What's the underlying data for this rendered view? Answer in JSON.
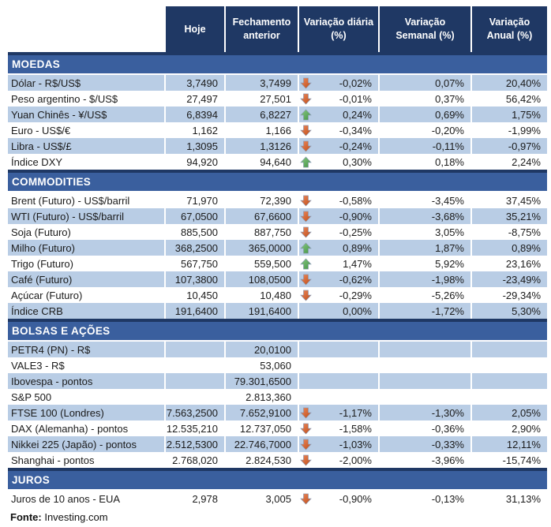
{
  "table": {
    "columns": [
      "Hoje",
      "Fechamento anterior",
      "Variação diária (%)",
      "Variação Semanal (%)",
      "Variação Anual (%)"
    ],
    "sections": [
      {
        "title": "MOEDAS",
        "zebra_start": "shaded",
        "rows": [
          {
            "label": "Dólar - R$/US$",
            "hoje": "3,7490",
            "fechamento": "3,7499",
            "arrow": "down",
            "var_diaria": "-0,02%",
            "var_semanal": "0,07%",
            "var_anual": "20,40%"
          },
          {
            "label": "Peso argentino - $/US$",
            "hoje": "27,497",
            "fechamento": "27,501",
            "arrow": "down",
            "var_diaria": "-0,01%",
            "var_semanal": "0,37%",
            "var_anual": "56,42%"
          },
          {
            "label": "Yuan Chinês - ¥/US$",
            "hoje": "6,8394",
            "fechamento": "6,8227",
            "arrow": "up",
            "var_diaria": "0,24%",
            "var_semanal": "0,69%",
            "var_anual": "1,75%"
          },
          {
            "label": "Euro - US$/€",
            "hoje": "1,162",
            "fechamento": "1,166",
            "arrow": "down",
            "var_diaria": "-0,34%",
            "var_semanal": "-0,20%",
            "var_anual": "-1,99%"
          },
          {
            "label": "Libra - US$/£",
            "hoje": "1,3095",
            "fechamento": "1,3126",
            "arrow": "down",
            "var_diaria": "-0,24%",
            "var_semanal": "-0,11%",
            "var_anual": "-0,97%"
          },
          {
            "label": "Índice DXY",
            "hoje": "94,920",
            "fechamento": "94,640",
            "arrow": "up",
            "var_diaria": "0,30%",
            "var_semanal": "0,18%",
            "var_anual": "2,24%"
          }
        ]
      },
      {
        "title": "COMMODITIES",
        "zebra_start": "white",
        "rows": [
          {
            "label": "Brent (Futuro) - US$/barril",
            "hoje": "71,970",
            "fechamento": "72,390",
            "arrow": "down",
            "var_diaria": "-0,58%",
            "var_semanal": "-3,45%",
            "var_anual": "37,45%"
          },
          {
            "label": "WTI (Futuro) - US$/barril",
            "hoje": "67,0500",
            "fechamento": "67,6600",
            "arrow": "down",
            "var_diaria": "-0,90%",
            "var_semanal": "-3,68%",
            "var_anual": "35,21%"
          },
          {
            "label": "Soja (Futuro)",
            "hoje": "885,500",
            "fechamento": "887,750",
            "arrow": "down",
            "var_diaria": "-0,25%",
            "var_semanal": "3,05%",
            "var_anual": "-8,75%"
          },
          {
            "label": "Milho (Futuro)",
            "hoje": "368,2500",
            "fechamento": "365,0000",
            "arrow": "up",
            "var_diaria": "0,89%",
            "var_semanal": "1,87%",
            "var_anual": "0,89%"
          },
          {
            "label": "Trigo (Futuro)",
            "hoje": "567,750",
            "fechamento": "559,500",
            "arrow": "up",
            "var_diaria": "1,47%",
            "var_semanal": "5,92%",
            "var_anual": "23,16%"
          },
          {
            "label": "Café (Futuro)",
            "hoje": "107,3800",
            "fechamento": "108,0500",
            "arrow": "down",
            "var_diaria": "-0,62%",
            "var_semanal": "-1,98%",
            "var_anual": "-23,49%"
          },
          {
            "label": "Açúcar (Futuro)",
            "hoje": "10,450",
            "fechamento": "10,480",
            "arrow": "down",
            "var_diaria": "-0,29%",
            "var_semanal": "-5,26%",
            "var_anual": "-29,34%"
          },
          {
            "label": "Índice CRB",
            "hoje": "191,6400",
            "fechamento": "191,6400",
            "arrow": "",
            "var_diaria": "0,00%",
            "var_semanal": "-1,72%",
            "var_anual": "5,30%"
          }
        ]
      },
      {
        "title": "BOLSAS E AÇÕES",
        "zebra_start": "shaded",
        "rows": [
          {
            "label": "PETR4 (PN) - R$",
            "hoje": "",
            "fechamento": "20,0100",
            "arrow": "",
            "var_diaria": "",
            "var_semanal": "",
            "var_anual": ""
          },
          {
            "label": "VALE3 - R$",
            "hoje": "",
            "fechamento": "53,060",
            "arrow": "",
            "var_diaria": "",
            "var_semanal": "",
            "var_anual": ""
          },
          {
            "label": "Ibovespa - pontos",
            "hoje": "",
            "fechamento": "79.301,6500",
            "arrow": "",
            "var_diaria": "",
            "var_semanal": "",
            "var_anual": ""
          },
          {
            "label": "S&P 500",
            "hoje": "",
            "fechamento": "2.813,360",
            "arrow": "",
            "var_diaria": "",
            "var_semanal": "",
            "var_anual": ""
          },
          {
            "label": "FTSE 100 (Londres)",
            "hoje": "7.563,2500",
            "fechamento": "7.652,9100",
            "arrow": "down",
            "var_diaria": "-1,17%",
            "var_semanal": "-1,30%",
            "var_anual": "2,05%"
          },
          {
            "label": "DAX (Alemanha) - pontos",
            "hoje": "12.535,210",
            "fechamento": "12.737,050",
            "arrow": "down",
            "var_diaria": "-1,58%",
            "var_semanal": "-0,36%",
            "var_anual": "2,90%"
          },
          {
            "label": "Nikkei 225 (Japão) - pontos",
            "hoje": "22.512,5300",
            "fechamento": "22.746,7000",
            "arrow": "down",
            "var_diaria": "-1,03%",
            "var_semanal": "-0,33%",
            "var_anual": "12,11%"
          },
          {
            "label": "Shanghai - pontos",
            "hoje": "2.768,020",
            "fechamento": "2.824,530",
            "arrow": "down",
            "var_diaria": "-2,00%",
            "var_semanal": "-3,96%",
            "var_anual": "-15,74%"
          }
        ]
      },
      {
        "title": "JUROS",
        "zebra_start": "white",
        "rows": [
          {
            "label": "Juros de 10 anos - EUA",
            "hoje": "2,978",
            "fechamento": "3,005",
            "arrow": "down",
            "var_diaria": "-0,90%",
            "var_semanal": "-0,13%",
            "var_anual": "31,13%"
          }
        ]
      }
    ]
  },
  "footer": {
    "label": "Fonte:",
    "value": "Investing.com"
  },
  "colors": {
    "header_bg": "#1F3864",
    "band_bg": "#3A5F9E",
    "band_border": "#1F3864",
    "row_shaded": "#B9CDE5",
    "arrow_down_top": "#EC8A5E",
    "arrow_down_bottom": "#BE4B16",
    "arrow_up_top": "#8CCB85",
    "arrow_up_bottom": "#3F9143"
  },
  "icons": {
    "up": "up-arrow-icon",
    "down": "down-arrow-icon"
  }
}
